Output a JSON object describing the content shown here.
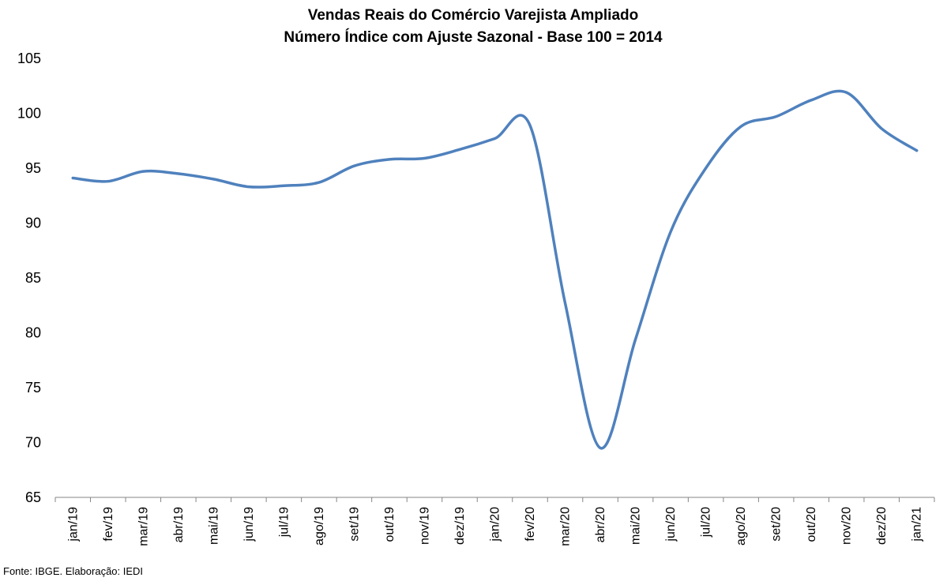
{
  "chart_data": {
    "type": "line",
    "title": "Vendas Reais do Comércio Varejista Ampliado",
    "subtitle": "Número Índice com Ajuste Sazonal - Base 100 = 2014",
    "xlabel": "",
    "ylabel": "",
    "ylim": [
      65,
      105
    ],
    "yticks": [
      65,
      70,
      75,
      80,
      85,
      90,
      95,
      100,
      105
    ],
    "grid": false,
    "legend": "none",
    "line_color": "#4F81BD",
    "categories": [
      "jan/19",
      "fev/19",
      "mar/19",
      "abr/19",
      "mai/19",
      "jun/19",
      "jul/19",
      "ago/19",
      "set/19",
      "out/19",
      "nov/19",
      "dez/19",
      "jan/20",
      "fev/20",
      "mar/20",
      "abr/20",
      "mai/20",
      "jun/20",
      "jul/20",
      "ago/20",
      "set/20",
      "out/20",
      "nov/20",
      "dez/20",
      "jan/21"
    ],
    "series": [
      {
        "values": [
          94.1,
          93.8,
          94.7,
          94.5,
          94.0,
          93.3,
          93.4,
          93.7,
          95.2,
          95.8,
          95.9,
          96.7,
          97.7,
          98.9,
          82.7,
          69.5,
          79.4,
          89.2,
          95.0,
          98.8,
          99.7,
          101.2,
          101.9,
          98.6,
          96.6
        ]
      }
    ]
  },
  "source": "Fonte: IBGE. Elaboração: IEDI"
}
